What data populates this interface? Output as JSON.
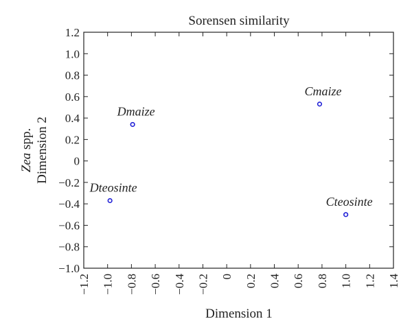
{
  "chart_data": {
    "type": "scatter",
    "title": "Sorensen similarity",
    "xlabel": "Dimension 1",
    "ylabel_prefix_italic": "Zea",
    "ylabel_prefix_rest": " spp.",
    "ylabel_line2": "Dimension 2",
    "xlim": [
      -1.2,
      1.4
    ],
    "ylim": [
      -1.0,
      1.2
    ],
    "xticks": [
      "−1.2",
      "−1.0",
      "−0.8",
      "−0.6",
      "−0.4",
      "−0.2",
      "0",
      "0.2",
      "0.4",
      "0.6",
      "0.8",
      "1.0",
      "1.2",
      "1.4"
    ],
    "xtick_values": [
      -1.2,
      -1.0,
      -0.8,
      -0.6,
      -0.4,
      -0.2,
      0,
      0.2,
      0.4,
      0.6,
      0.8,
      1.0,
      1.2,
      1.4
    ],
    "yticks": [
      "1.2",
      "1.0",
      "0.8",
      "0.6",
      "0.4",
      "0.2",
      "0",
      "−0.2",
      "−0.4",
      "−0.6",
      "−0.8",
      "−1.0"
    ],
    "ytick_values": [
      1.2,
      1.0,
      0.8,
      0.6,
      0.4,
      0.2,
      0,
      -0.2,
      -0.4,
      -0.6,
      -0.8,
      -1.0
    ],
    "grid": false,
    "marker_color": "#1f1fd6",
    "points": [
      {
        "label": "Dmaize",
        "x": -0.79,
        "y": 0.34
      },
      {
        "label": "Dteosinte",
        "x": -0.98,
        "y": -0.37
      },
      {
        "label": "Cmaize",
        "x": 0.78,
        "y": 0.53
      },
      {
        "label": "Cteosinte",
        "x": 1.0,
        "y": -0.5
      }
    ]
  }
}
